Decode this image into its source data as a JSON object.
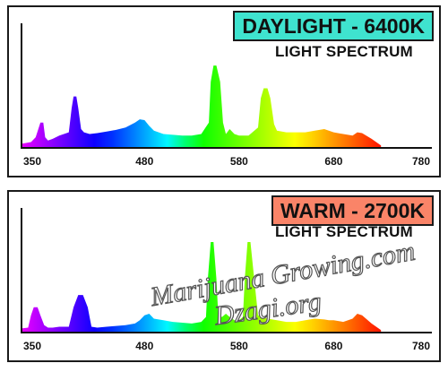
{
  "chart_data": [
    {
      "type": "area",
      "badge": "DAYLIGHT - 6400K",
      "subtitle": "LIGHT SPECTRUM",
      "badge_color": "#3fe3cf",
      "xlim": [
        350,
        780
      ],
      "ticks": [
        350,
        480,
        580,
        680,
        780
      ],
      "x": [
        350,
        360,
        365,
        370,
        373,
        375,
        378,
        383,
        390,
        400,
        403,
        405,
        408,
        410,
        413,
        416,
        422,
        430,
        440,
        450,
        460,
        470,
        475,
        480,
        485,
        490,
        495,
        500,
        510,
        520,
        530,
        540,
        548,
        550,
        553,
        556,
        560,
        563,
        566,
        570,
        575,
        580,
        590,
        600,
        603,
        606,
        610,
        613,
        617,
        620,
        630,
        640,
        650,
        660,
        670,
        680,
        690,
        700,
        705,
        710,
        720,
        730
      ],
      "y": [
        4,
        6,
        12,
        30,
        30,
        12,
        8,
        10,
        14,
        18,
        48,
        62,
        62,
        48,
        22,
        18,
        16,
        17,
        19,
        21,
        24,
        30,
        34,
        33,
        26,
        20,
        18,
        16,
        15,
        14,
        14,
        16,
        30,
        80,
        100,
        100,
        80,
        30,
        16,
        22,
        16,
        14,
        14,
        24,
        60,
        72,
        72,
        60,
        28,
        20,
        18,
        18,
        18,
        20,
        22,
        18,
        16,
        14,
        18,
        17,
        10,
        2
      ],
      "series_color_scale": "wavelength"
    },
    {
      "type": "area",
      "badge": "WARM - 2700K",
      "subtitle": "LIGHT SPECTRUM",
      "badge_color": "#fa8468",
      "xlim": [
        350,
        780
      ],
      "ticks": [
        350,
        480,
        580,
        680,
        780
      ],
      "x": [
        350,
        357,
        360,
        363,
        367,
        370,
        374,
        378,
        383,
        390,
        400,
        405,
        410,
        415,
        420,
        424,
        430,
        440,
        450,
        460,
        470,
        475,
        480,
        485,
        490,
        500,
        510,
        520,
        530,
        540,
        545,
        547,
        550,
        553,
        556,
        558,
        562,
        566,
        570,
        575,
        580,
        584,
        586,
        589,
        592,
        596,
        600,
        610,
        620,
        630,
        640,
        650,
        660,
        670,
        675,
        680,
        690,
        700,
        705,
        710,
        720,
        730
      ],
      "y": [
        4,
        5,
        20,
        30,
        30,
        20,
        8,
        5,
        5,
        6,
        6,
        30,
        45,
        45,
        30,
        6,
        5,
        6,
        7,
        8,
        10,
        14,
        20,
        22,
        16,
        14,
        12,
        11,
        10,
        12,
        18,
        65,
        110,
        110,
        65,
        20,
        18,
        22,
        18,
        14,
        14,
        18,
        65,
        110,
        110,
        65,
        20,
        16,
        14,
        12,
        12,
        14,
        16,
        15,
        14,
        14,
        12,
        16,
        22,
        20,
        10,
        2
      ],
      "series_color_scale": "wavelength"
    }
  ],
  "watermark": [
    "Marijuana Growing.com",
    "Dzagi.org"
  ]
}
